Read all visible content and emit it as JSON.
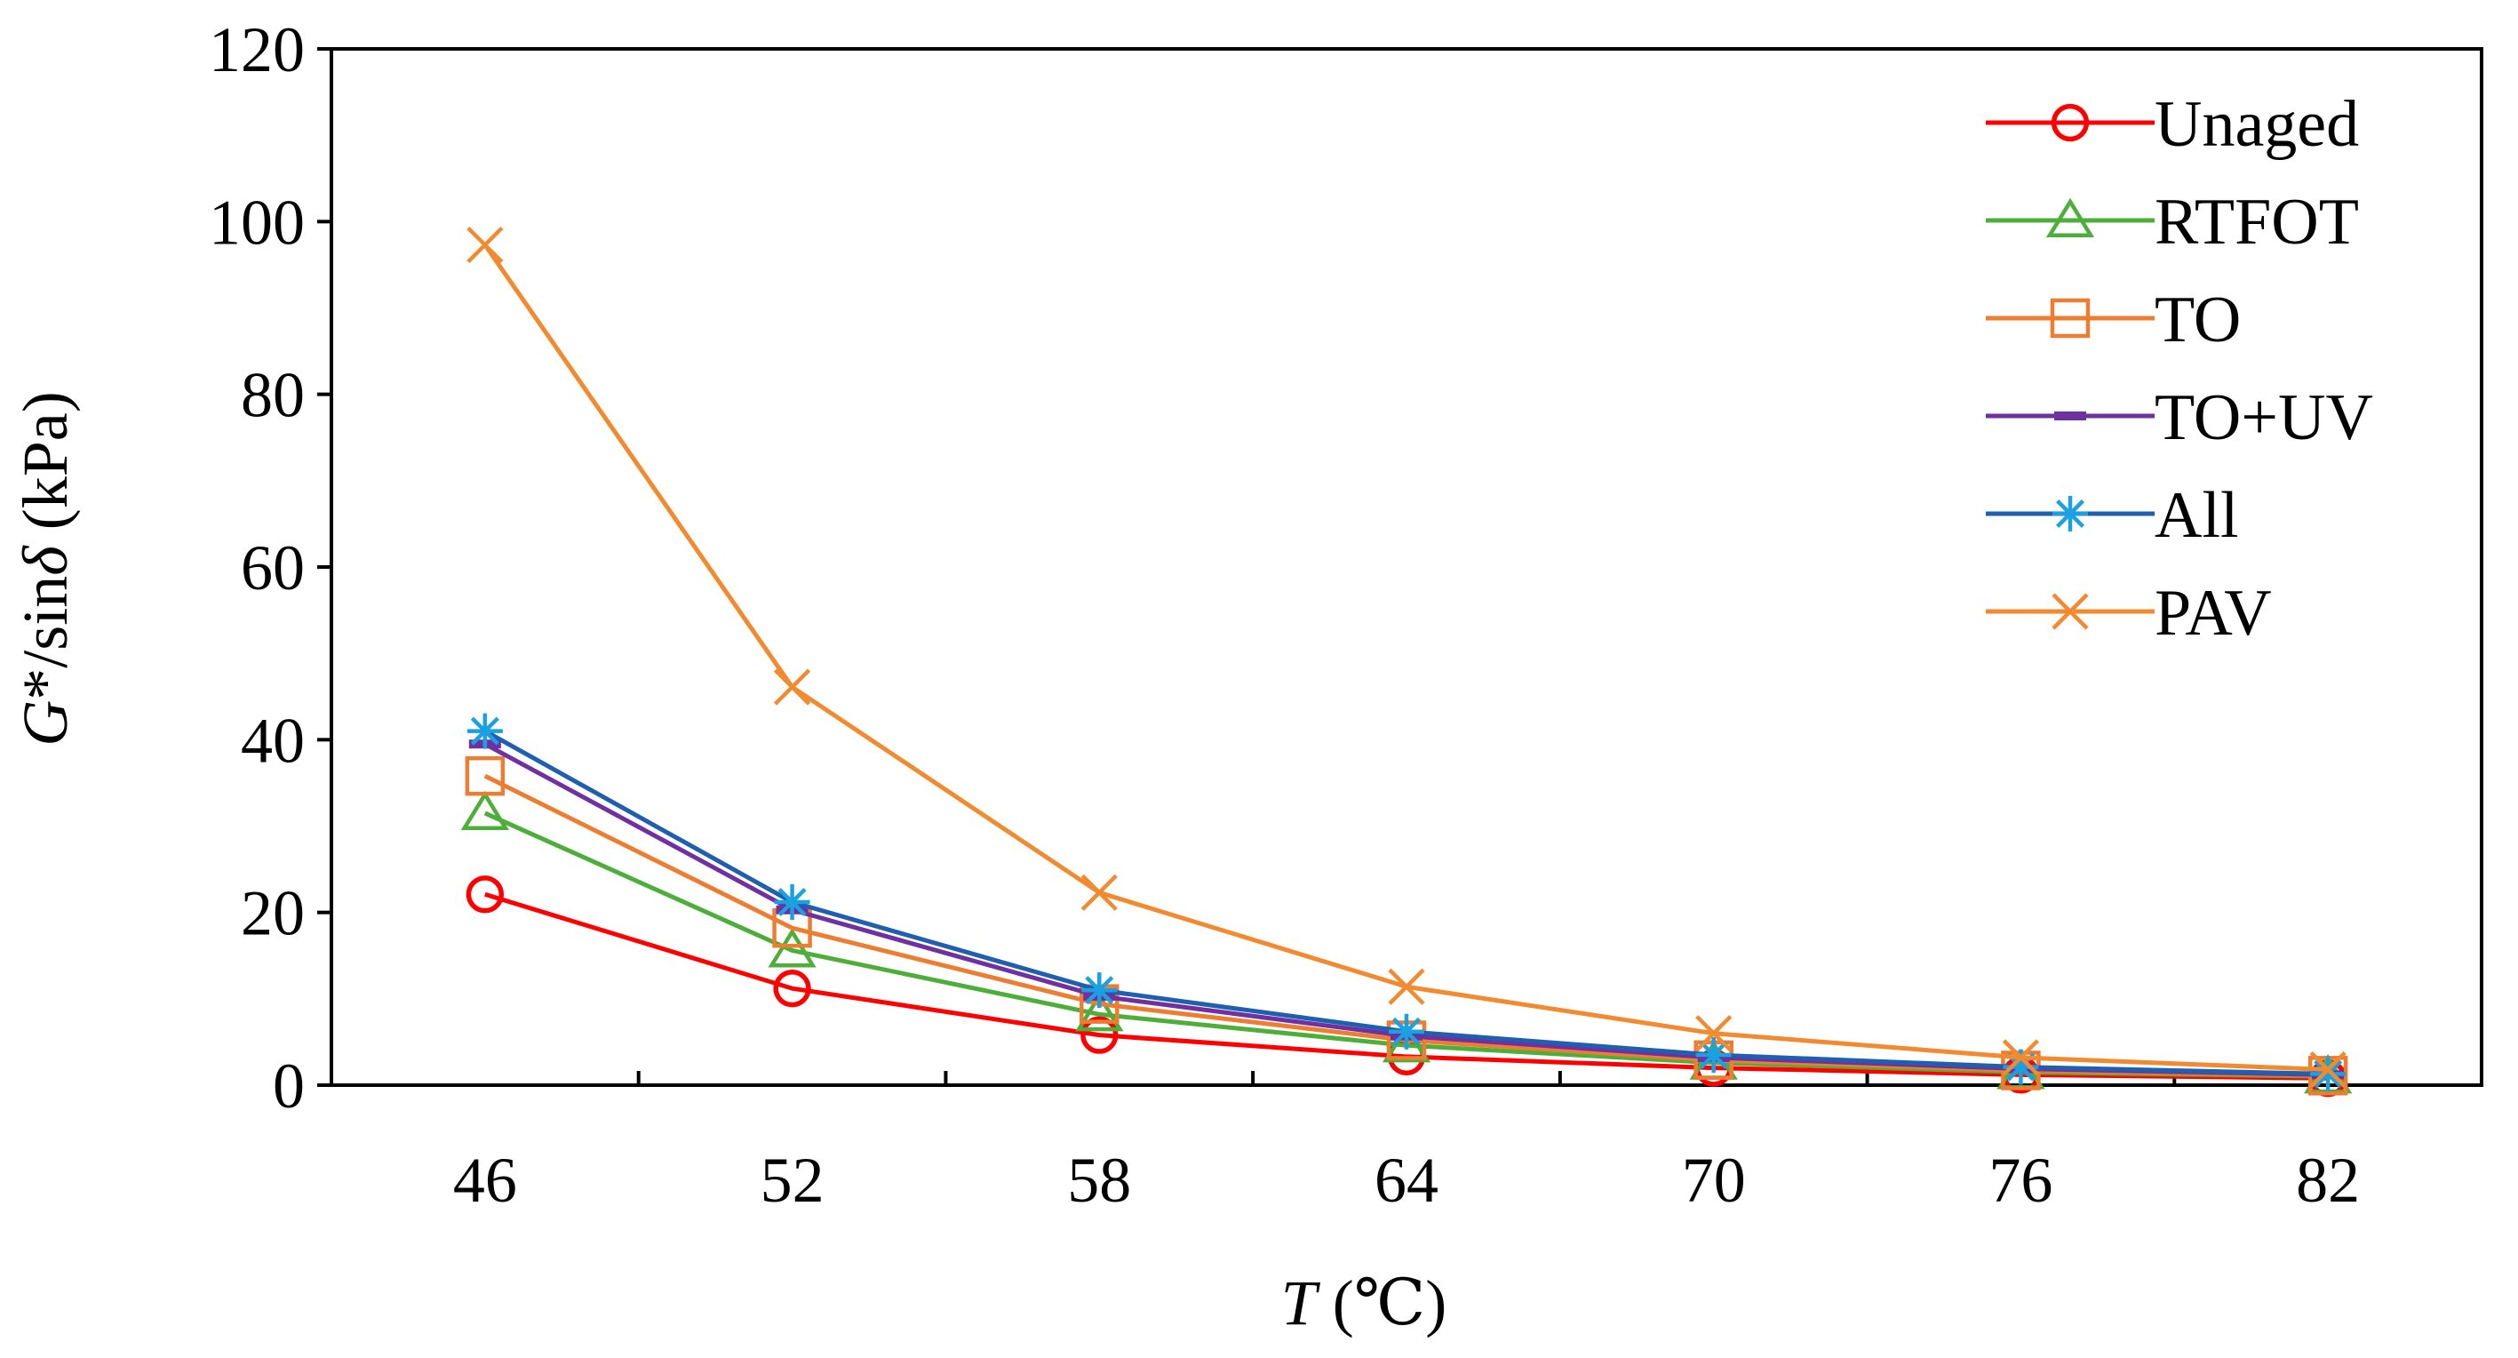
{
  "chart_data": {
    "type": "line",
    "title": "",
    "xlabel": {
      "var": "T",
      "unit": " (℃)"
    },
    "ylabel": {
      "var1": "G",
      "mid": "*/sin",
      "var2": "δ",
      "unit": " (kPa)"
    },
    "categories": [
      "46",
      "52",
      "58",
      "64",
      "70",
      "76",
      "82"
    ],
    "ylim": [
      0,
      120
    ],
    "yticks": [
      0,
      20,
      40,
      60,
      80,
      100,
      120
    ],
    "ytick_labels": [
      "0",
      "20",
      "40",
      "60",
      "80",
      "100",
      "120"
    ],
    "grid": false,
    "legend_position": "top-right",
    "series": [
      {
        "name": "Unaged",
        "color": "#ff0000",
        "line_color": "#ff0000",
        "marker": "circle",
        "values": [
          22.1,
          11.2,
          5.8,
          3.3,
          2.0,
          1.2,
          0.8
        ]
      },
      {
        "name": "RTFOT",
        "color": "#4daf3a",
        "line_color": "#4daf3a",
        "marker": "triangle",
        "values": [
          31.5,
          15.6,
          8.2,
          4.6,
          2.6,
          1.5,
          1.0
        ]
      },
      {
        "name": "TO",
        "color": "#ed7d31",
        "line_color": "#ed7d31",
        "marker": "square",
        "values": [
          35.8,
          18.2,
          9.4,
          5.2,
          2.9,
          1.7,
          1.1
        ]
      },
      {
        "name": "TO+UV",
        "color": "#7030a0",
        "line_color": "#7030a0",
        "marker": "dash",
        "values": [
          39.5,
          20.3,
          10.3,
          5.7,
          3.2,
          1.9,
          1.2
        ]
      },
      {
        "name": "All",
        "color": "#1ba1e2",
        "line_color": "#1f5fb0",
        "marker": "star",
        "values": [
          41.0,
          21.2,
          11.0,
          6.2,
          3.5,
          2.1,
          1.3
        ]
      },
      {
        "name": "PAV",
        "color": "#f28a30",
        "line_color": "#f28a30",
        "marker": "x",
        "values": [
          97.3,
          46.1,
          22.3,
          11.4,
          6.0,
          3.2,
          1.8
        ]
      }
    ]
  }
}
